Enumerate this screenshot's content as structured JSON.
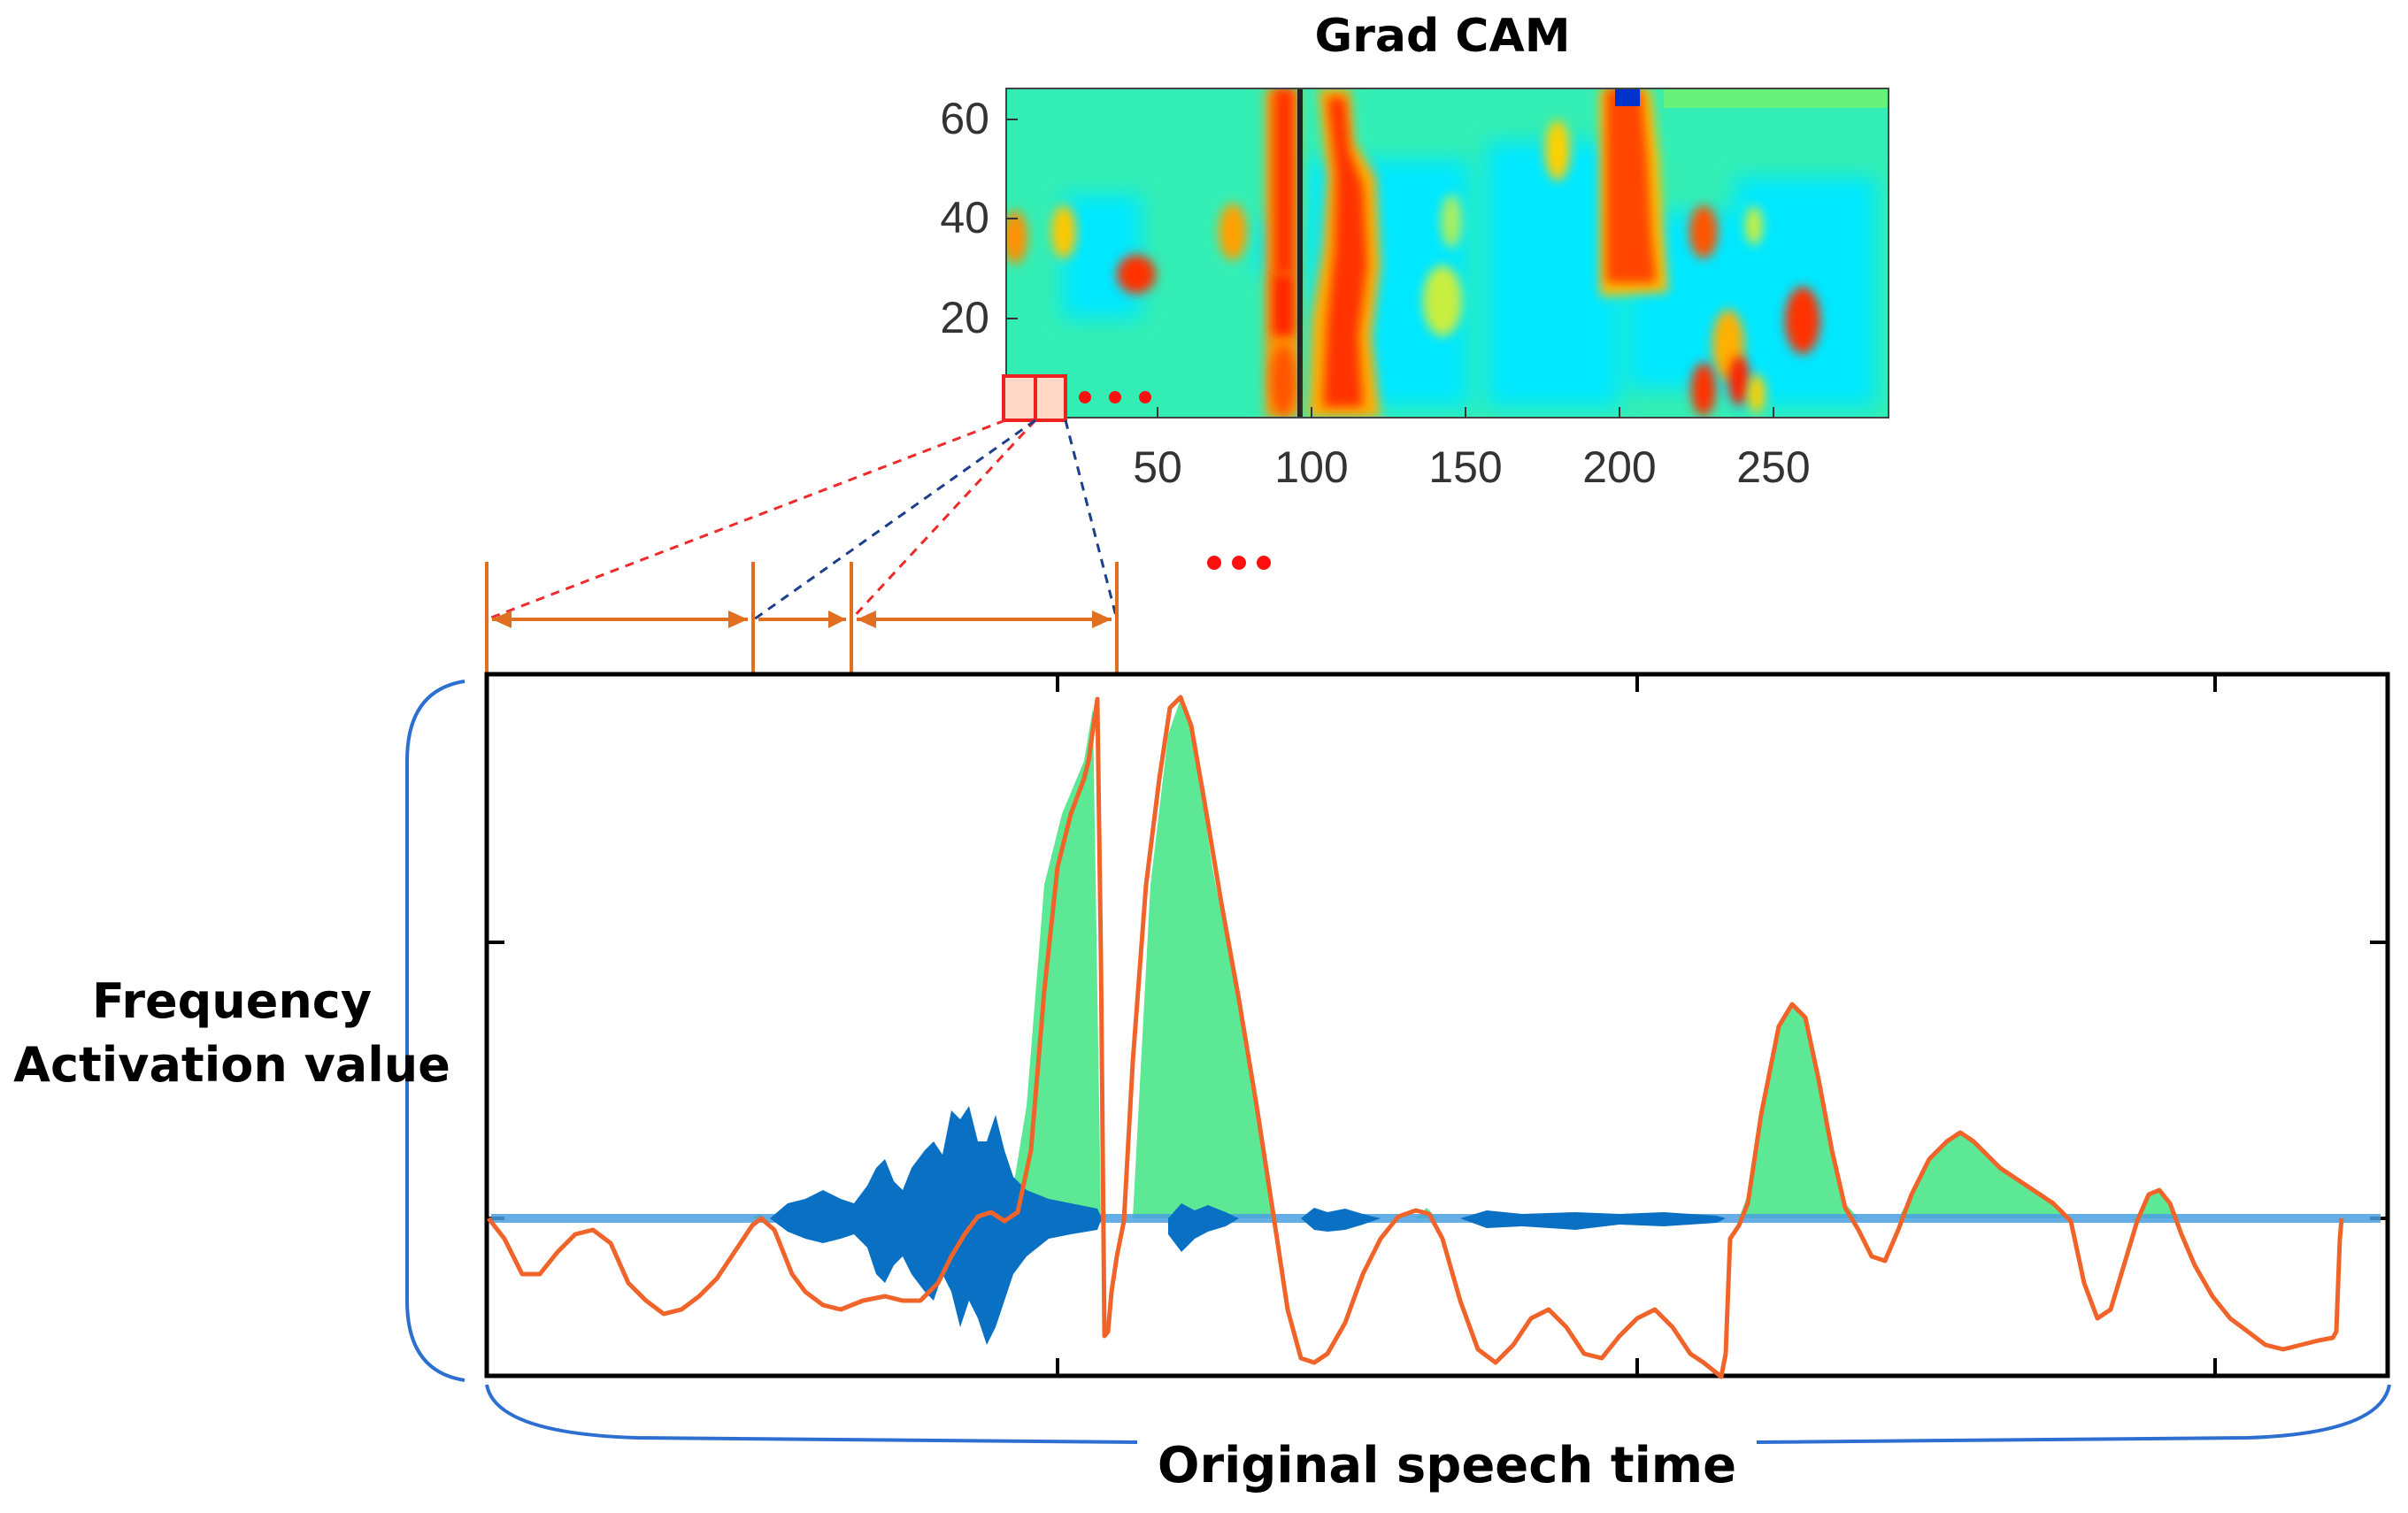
{
  "heatmap": {
    "title": "Grad CAM",
    "y_ticks": [
      "60",
      "40",
      "20"
    ],
    "x_ticks": [
      "50",
      "100",
      "150",
      "200",
      "250"
    ],
    "colors": {
      "background": "#33eeb4",
      "cool": "#00e5ff",
      "warm": "#ffd000",
      "hot": "#ff3300",
      "peak": "#cc0000",
      "deep_blue": "#0033cc"
    }
  },
  "marker_dots": {
    "color": "#ff1010"
  },
  "signal_plot": {
    "ylabel_line1": "Frequency",
    "ylabel_line2": "Activation value",
    "xlabel": "Original speech time",
    "colors": {
      "activation": "#f0642a",
      "fill": "#5ce894",
      "waveform": "#0a70c4",
      "axis_bracket": "#2d6fd0",
      "guide_red": "#ee2a2a",
      "guide_blue": "#1c3f8c",
      "interval": "#e07020"
    }
  }
}
